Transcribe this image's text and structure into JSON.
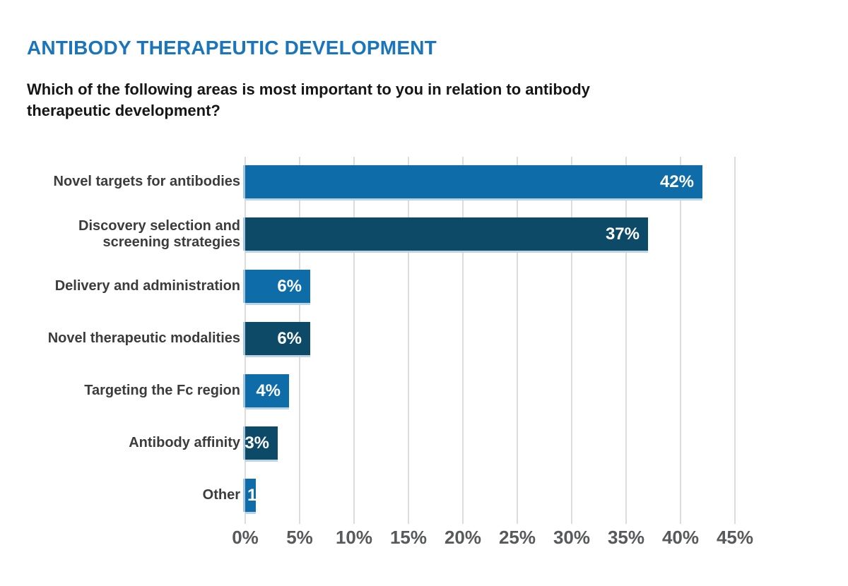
{
  "header": {
    "title": "ANTIBODY THERAPEUTIC DEVELOPMENT",
    "question_line1": "Which of the following areas is most important to you in relation to antibody",
    "question_line2": "therapeutic development?"
  },
  "chart_data": {
    "type": "bar",
    "orientation": "horizontal",
    "title": "ANTIBODY THERAPEUTIC DEVELOPMENT",
    "subtitle": "Which of the following areas is most important to you in relation to antibody therapeutic development?",
    "categories": [
      "Novel targets for antibodies",
      "Discovery  selection and\nscreening strategies",
      "Delivery and administration",
      "Novel therapeutic modalities",
      "Targeting the Fc region",
      "Antibody affinity",
      "Other"
    ],
    "values": [
      42,
      37,
      6,
      6,
      4,
      3,
      1
    ],
    "value_labels": [
      "42%",
      "37%",
      "6%",
      "6%",
      "4%",
      "3%",
      "1%"
    ],
    "x_ticks": [
      "0%",
      "5%",
      "10%",
      "15%",
      "20%",
      "25%",
      "30%",
      "35%",
      "40%",
      "45%"
    ],
    "x_tick_values": [
      0,
      5,
      10,
      15,
      20,
      25,
      30,
      35,
      40,
      45
    ],
    "xlim": [
      0,
      45
    ],
    "grid": true,
    "legend": "none",
    "colors": {
      "bar_light": "#0e6ca9",
      "bar_dark": "#0d4a68",
      "bar_edge": "#a7c6dc",
      "value_label": "#ffffff",
      "gridline": "#dcdcdc",
      "tick_label": "#58595b",
      "category_label": "#3c3c3c",
      "title": "#1b75ba",
      "question": "#161616"
    }
  }
}
